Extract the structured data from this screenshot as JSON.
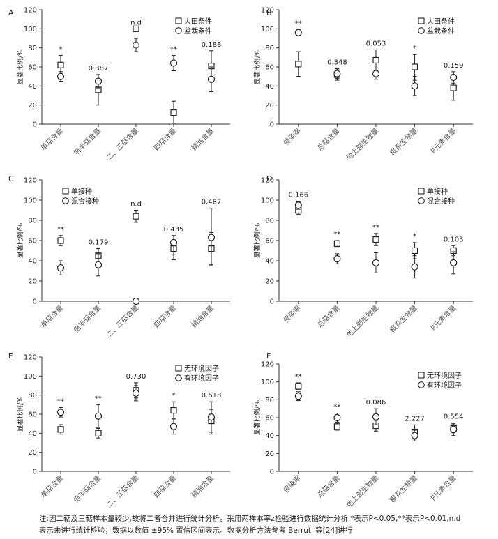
{
  "chart_data": [
    {
      "panel": "A",
      "type": "scatter",
      "ylabel": "显著比例/%",
      "ylim": [
        0,
        120
      ],
      "yticks": [
        0,
        20,
        40,
        60,
        80,
        100,
        120
      ],
      "categories": [
        "单萜含量",
        "倍半萜含量",
        "二、三萜含量",
        "四萜含量",
        "精油含量"
      ],
      "series": [
        {
          "name": "大田条件",
          "marker": "square",
          "values": [
            62,
            36,
            100,
            12,
            61
          ],
          "lower": [
            52,
            20,
            null,
            1,
            45
          ],
          "upper": [
            72,
            52,
            null,
            24,
            77
          ]
        },
        {
          "name": "盆栽条件",
          "marker": "circle",
          "values": [
            50,
            45,
            83,
            64,
            47
          ],
          "lower": [
            45,
            38,
            76,
            56,
            34
          ],
          "upper": [
            55,
            52,
            90,
            72,
            60
          ]
        }
      ],
      "annotations": [
        "*",
        "0.387",
        "n.d",
        "**",
        "0.188"
      ],
      "legend": "top-right"
    },
    {
      "panel": "B",
      "type": "scatter",
      "ylabel": "显著比例/%",
      "ylim": [
        0,
        120
      ],
      "yticks": [
        0,
        20,
        40,
        60,
        80,
        100,
        120
      ],
      "categories": [
        "侵染率",
        "总萜含量",
        "地上部生物量",
        "根系生物量",
        "P元素含量"
      ],
      "series": [
        {
          "name": "大田条件",
          "marker": "square",
          "values": [
            63,
            52,
            67,
            60,
            38
          ],
          "lower": [
            50,
            46,
            56,
            46,
            25
          ],
          "upper": [
            76,
            58,
            78,
            73,
            51
          ]
        },
        {
          "name": "盆栽条件",
          "marker": "circle",
          "values": [
            96,
            53,
            53,
            40,
            49
          ],
          "lower": [
            93,
            48,
            47,
            30,
            43
          ],
          "upper": [
            99,
            58,
            59,
            50,
            55
          ]
        }
      ],
      "annotations": [
        "**",
        "0.348",
        "0.053",
        "*",
        "0.159"
      ],
      "legend": "top-right"
    },
    {
      "panel": "C",
      "type": "scatter",
      "ylabel": "显著比例/%",
      "ylim": [
        0,
        120
      ],
      "yticks": [
        0,
        20,
        40,
        60,
        80,
        100,
        120
      ],
      "categories": [
        "单萜含量",
        "倍半萜含量",
        "二、三萜含量",
        "四萜含量",
        "精油含量"
      ],
      "series": [
        {
          "name": "单接种",
          "marker": "square",
          "values": [
            60,
            45,
            84,
            52,
            52
          ],
          "lower": [
            55,
            38,
            78,
            46,
            36
          ],
          "upper": [
            65,
            52,
            90,
            58,
            68
          ]
        },
        {
          "name": "混合接种",
          "marker": "circle",
          "values": [
            33,
            36,
            0,
            58,
            63
          ],
          "lower": [
            26,
            25,
            null,
            41,
            35
          ],
          "upper": [
            40,
            47,
            null,
            65,
            92
          ]
        }
      ],
      "annotations": [
        "**",
        "0.179",
        "n.d",
        "0.435",
        "0.487"
      ],
      "legend": "top-left"
    },
    {
      "panel": "D",
      "type": "scatter",
      "ylabel": "显著比例/%",
      "ylim": [
        0,
        120
      ],
      "yticks": [
        0,
        20,
        40,
        60,
        80,
        100,
        120
      ],
      "categories": [
        "侵染率",
        "总萜含量",
        "地上部生物量",
        "根系生物量",
        "P元素含量"
      ],
      "series": [
        {
          "name": "单接种",
          "marker": "square",
          "values": [
            90,
            57,
            61,
            50,
            50
          ],
          "lower": [
            86,
            54,
            55,
            42,
            45
          ],
          "upper": [
            94,
            60,
            67,
            58,
            55
          ]
        },
        {
          "name": "混合接种",
          "marker": "circle",
          "values": [
            95,
            42,
            38,
            34,
            38
          ],
          "lower": [
            91,
            37,
            28,
            23,
            27
          ],
          "upper": [
            99,
            47,
            48,
            45,
            49
          ]
        }
      ],
      "annotations": [
        "0.166",
        "**",
        "**",
        "*",
        "0.103"
      ],
      "legend": "top-right"
    },
    {
      "panel": "E",
      "type": "scatter",
      "ylabel": "显著比例/%",
      "ylim": [
        0,
        120
      ],
      "yticks": [
        0,
        20,
        40,
        60,
        80,
        100,
        120
      ],
      "categories": [
        "单萜含量",
        "倍半萜含量",
        "二、三萜含量",
        "四萜含量",
        "精油含量"
      ],
      "series": [
        {
          "name": "无环境因子",
          "marker": "square",
          "values": [
            44,
            40,
            85,
            64,
            53
          ],
          "lower": [
            39,
            35,
            77,
            55,
            41
          ],
          "upper": [
            49,
            45,
            93,
            73,
            65
          ]
        },
        {
          "name": "有环境因子",
          "marker": "circle",
          "values": [
            62,
            58,
            82,
            47,
            57
          ],
          "lower": [
            57,
            46,
            74,
            39,
            39
          ],
          "upper": [
            67,
            70,
            90,
            55,
            73
          ]
        }
      ],
      "annotations": [
        "**",
        "**",
        "0.730",
        "*",
        "0.618"
      ],
      "legend": "top-right"
    },
    {
      "panel": "F",
      "type": "scatter",
      "ylabel": "显著比例/%",
      "ylim": [
        0,
        120
      ],
      "yticks": [
        0,
        20,
        40,
        60,
        80,
        100,
        120
      ],
      "categories": [
        "侵染率",
        "总萜含量",
        "地上部生物量",
        "根系生物量",
        "P元素含量"
      ],
      "series": [
        {
          "name": "无环境因子",
          "marker": "square",
          "values": [
            95,
            50,
            51,
            44,
            48
          ],
          "lower": [
            91,
            46,
            45,
            36,
            43
          ],
          "upper": [
            99,
            54,
            57,
            52,
            53
          ]
        },
        {
          "name": "有环境因子",
          "marker": "circle",
          "values": [
            84,
            60,
            61,
            40,
            47
          ],
          "lower": [
            79,
            55,
            52,
            34,
            40
          ],
          "upper": [
            89,
            65,
            70,
            46,
            54
          ]
        }
      ],
      "annotations": [
        "**",
        "**",
        "0.086",
        "2.227",
        "0.554"
      ],
      "legend": "top-right"
    }
  ],
  "footnote": {
    "line1": "注:因二萜及三萜样本量较少,故将二者合并进行统计分析。采用两样本率z检验进行数据统计分析,*表示P<0.05,**表示P<0.01,n.d",
    "line2": "表示未进行统计检验；数据以数值 ±95% 置信区间表示。数据分析方法参考 Berruti 等[24]进行"
  }
}
